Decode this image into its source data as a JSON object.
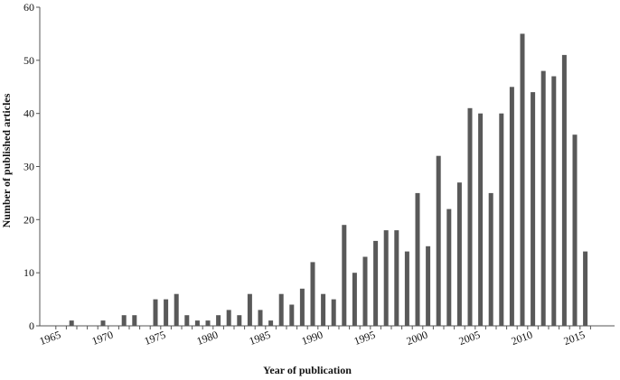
{
  "chart_data": {
    "type": "bar",
    "title": "",
    "xlabel": "Year of publication",
    "ylabel": "Number of published articles",
    "ylim": [
      0,
      60
    ],
    "yticks": [
      0,
      10,
      20,
      30,
      40,
      50,
      60
    ],
    "xticks": [
      1965,
      1970,
      1975,
      1980,
      1985,
      1990,
      1995,
      2000,
      2005,
      2010,
      2015
    ],
    "xlim": [
      1965,
      2016
    ],
    "grid": false,
    "bar_color": "#595959",
    "categories": [
      1965,
      1966,
      1967,
      1968,
      1969,
      1970,
      1971,
      1972,
      1973,
      1974,
      1975,
      1976,
      1977,
      1978,
      1979,
      1980,
      1981,
      1982,
      1983,
      1984,
      1985,
      1986,
      1987,
      1988,
      1989,
      1990,
      1991,
      1992,
      1993,
      1994,
      1995,
      1996,
      1997,
      1998,
      1999,
      2000,
      2001,
      2002,
      2003,
      2004,
      2005,
      2006,
      2007,
      2008,
      2009,
      2010,
      2011,
      2012,
      2013,
      2014,
      2015,
      2016
    ],
    "values": [
      0,
      0,
      1,
      0,
      0,
      1,
      0,
      2,
      2,
      0,
      5,
      5,
      6,
      2,
      1,
      1,
      2,
      3,
      2,
      6,
      3,
      1,
      6,
      4,
      7,
      12,
      6,
      5,
      19,
      10,
      13,
      16,
      18,
      18,
      14,
      25,
      15,
      32,
      22,
      27,
      41,
      40,
      25,
      40,
      45,
      55,
      44,
      48,
      47,
      51,
      36,
      14
    ]
  }
}
